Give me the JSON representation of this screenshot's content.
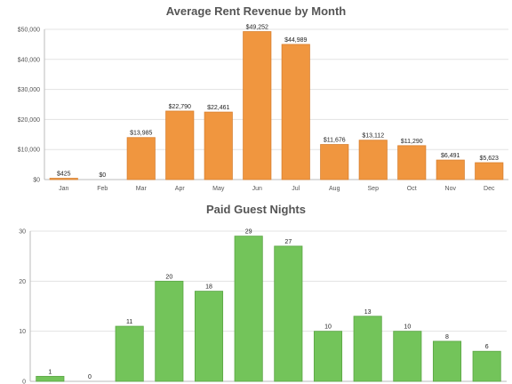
{
  "chart_data": [
    {
      "type": "bar",
      "title": "Average Rent Revenue by Month",
      "categories": [
        "Jan",
        "Feb",
        "Mar",
        "Apr",
        "May",
        "Jun",
        "Jul",
        "Aug",
        "Sep",
        "Oct",
        "Nov",
        "Dec"
      ],
      "values": [
        425,
        0,
        13985,
        22790,
        22461,
        49252,
        44989,
        11676,
        13112,
        11290,
        6491,
        5623
      ],
      "value_labels": [
        "$425",
        "$0",
        "$13,985",
        "$22,790",
        "$22,461",
        "$49,252",
        "$44,989",
        "$11,676",
        "$13,112",
        "$11,290",
        "$6,491",
        "$5,623"
      ],
      "ylim": [
        0,
        50000
      ],
      "yticks": [
        0,
        10000,
        20000,
        30000,
        40000,
        50000
      ],
      "ytick_labels": [
        "$0",
        "$10,000",
        "$20,000",
        "$30,000",
        "$40,000",
        "$50,000"
      ],
      "grid": true,
      "color": "#f0963f",
      "border_color": "#d9802f"
    },
    {
      "type": "bar",
      "title": "Paid Guest Nights",
      "categories": [
        "",
        "",
        "",
        "",
        "",
        "",
        "",
        "",
        "",
        "",
        "",
        ""
      ],
      "values": [
        1,
        0,
        11,
        20,
        18,
        29,
        27,
        10,
        13,
        10,
        8,
        6
      ],
      "value_labels": [
        "1",
        "0",
        "11",
        "20",
        "18",
        "29",
        "27",
        "10",
        "13",
        "10",
        "8",
        "6"
      ],
      "ylim": [
        0,
        30
      ],
      "yticks": [
        0,
        10,
        20,
        30
      ],
      "ytick_labels": [
        "0",
        "10",
        "20",
        "30"
      ],
      "grid": true,
      "color": "#73c45a",
      "border_color": "#5aa544"
    }
  ]
}
